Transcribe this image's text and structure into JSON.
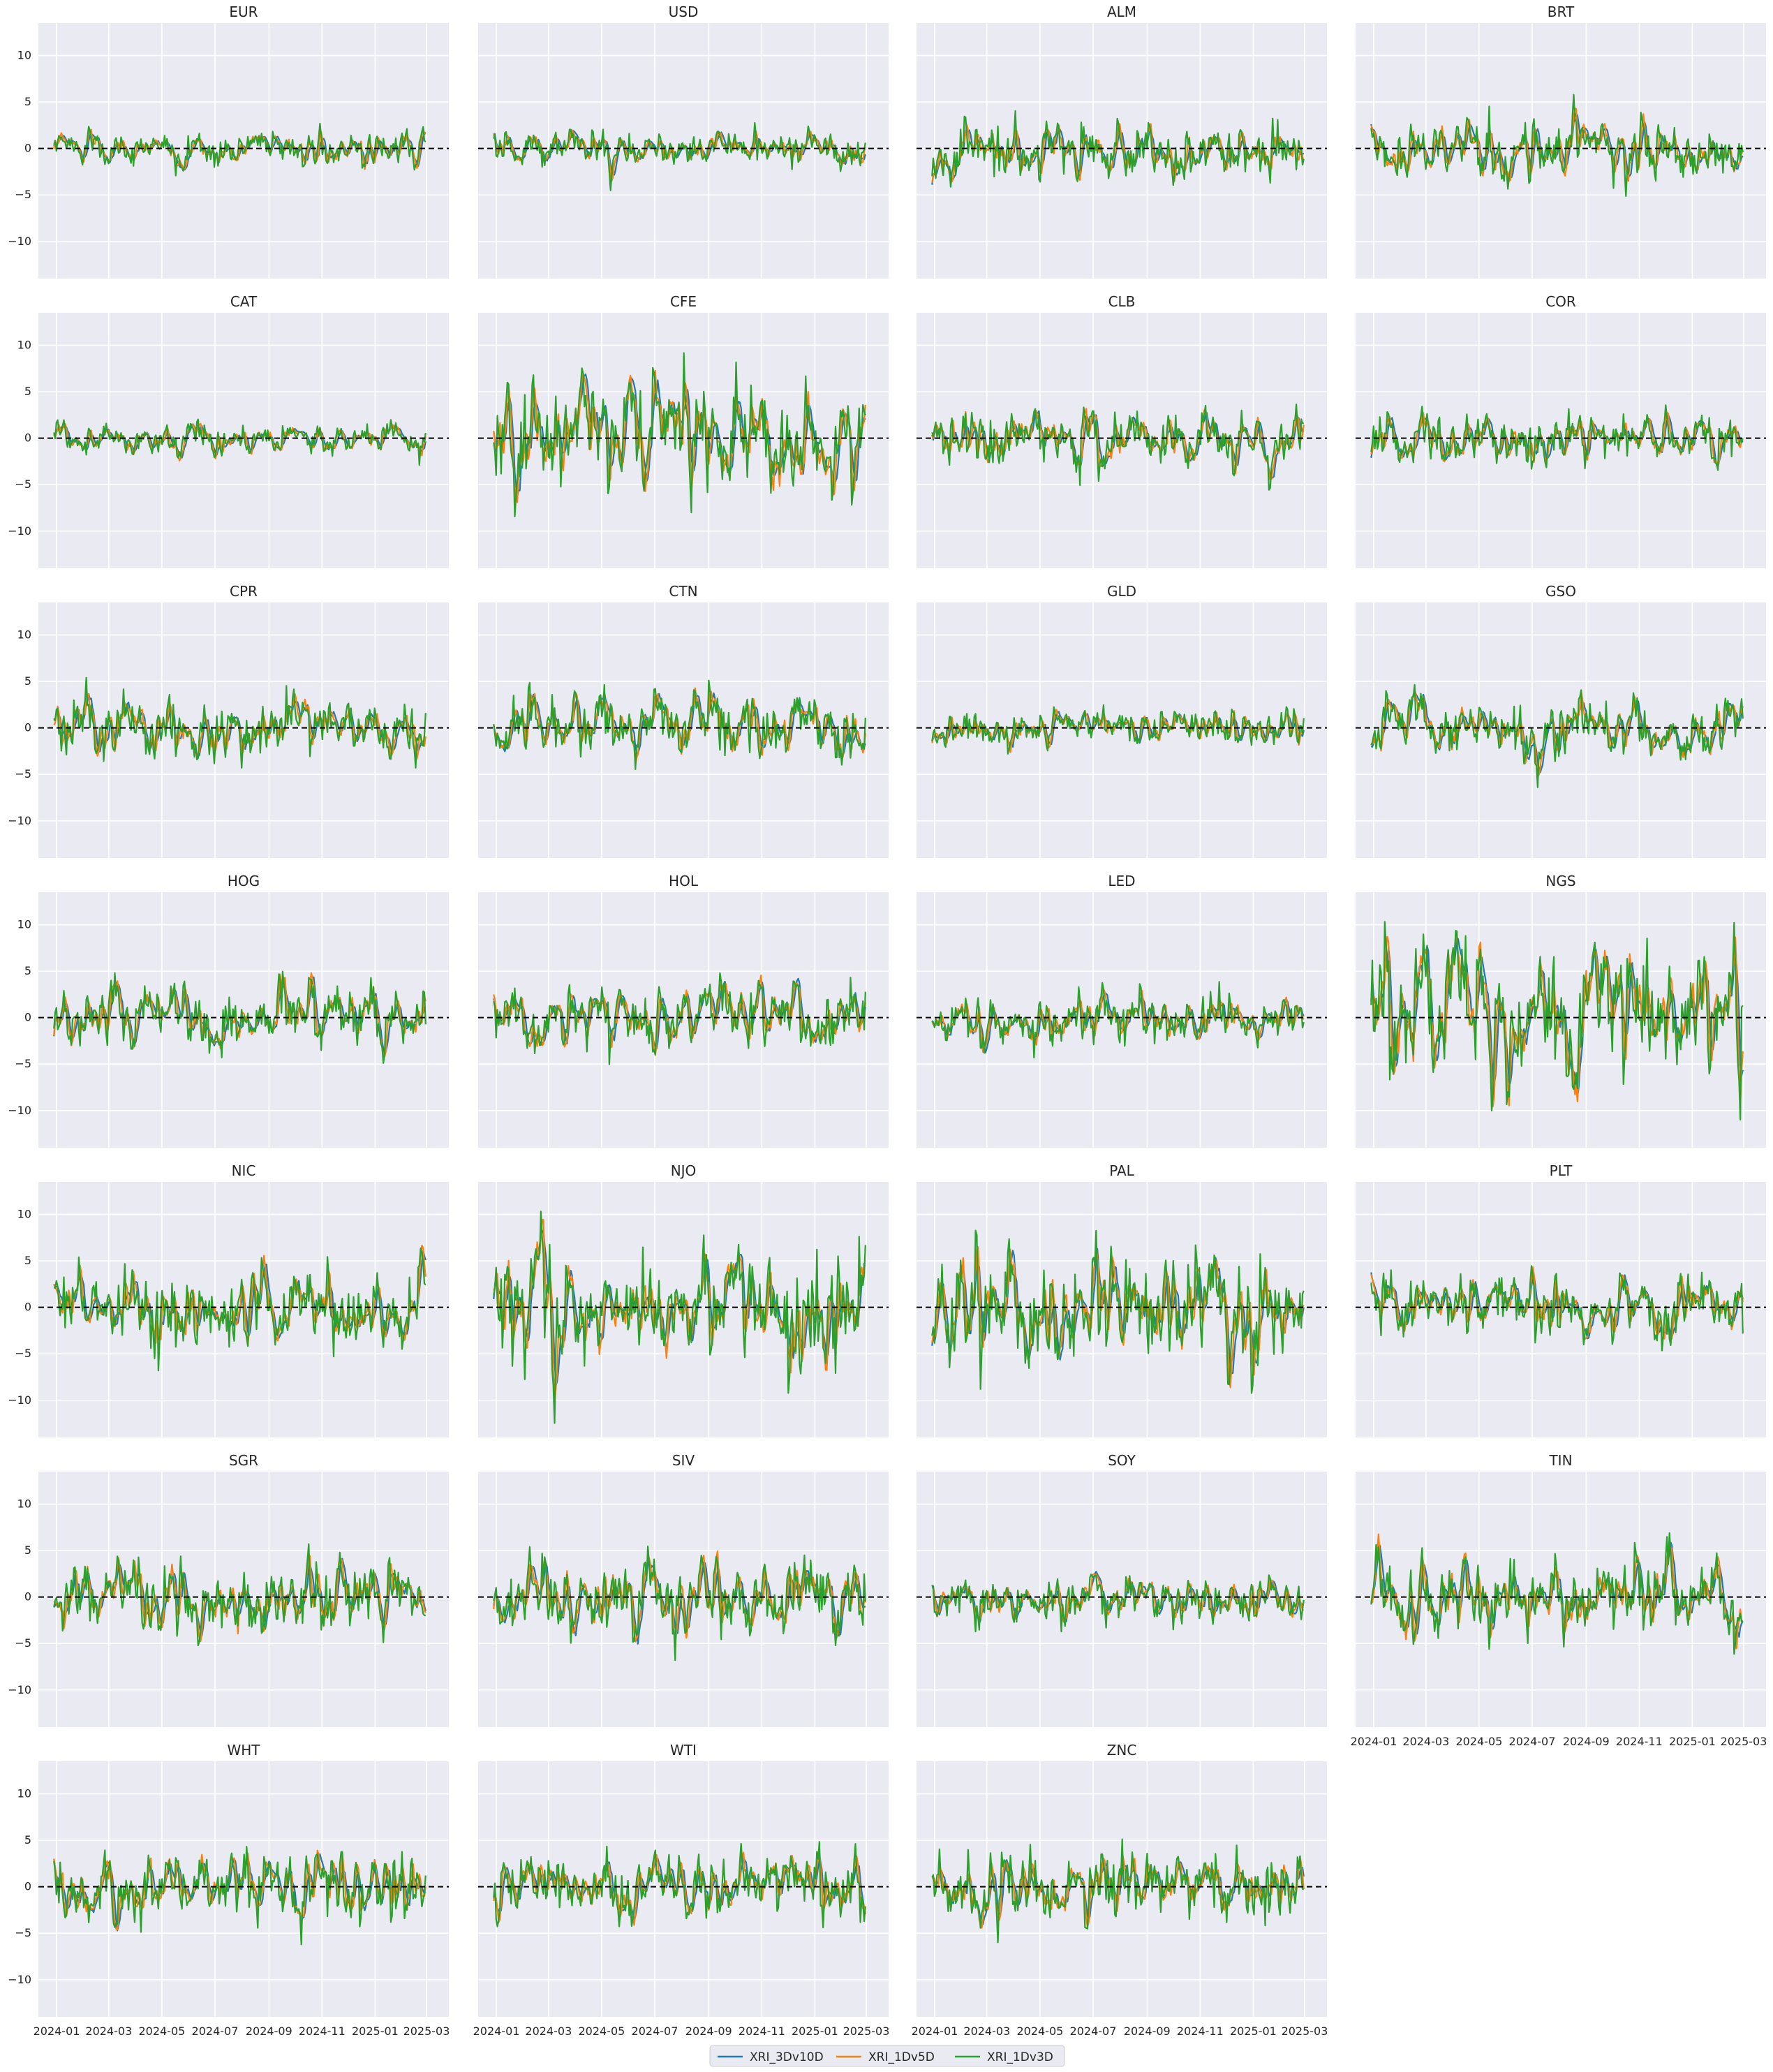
{
  "chart_data": {
    "type": "line",
    "layout": "small-multiples grid, 4 columns, shared y-axis range",
    "panels": [
      "EUR",
      "USD",
      "ALM",
      "BRT",
      "CAT",
      "CFE",
      "CLB",
      "COR",
      "CPR",
      "CTN",
      "GLD",
      "GSO",
      "HOG",
      "HOL",
      "LED",
      "NGS",
      "NIC",
      "NJO",
      "PAL",
      "PLT",
      "SGR",
      "SIV",
      "SOY",
      "TIN",
      "WHT",
      "WTI",
      "ZNC"
    ],
    "x_range": [
      "2024-01-01",
      "2025-03-01"
    ],
    "x_ticks": [
      "2024-01",
      "2024-03",
      "2024-05",
      "2024-07",
      "2024-09",
      "2024-11",
      "2025-01",
      "2025-03"
    ],
    "x_tick_dates": [
      "2024-01-01",
      "2024-03-01",
      "2024-05-01",
      "2024-07-01",
      "2024-09-01",
      "2024-11-01",
      "2025-01-01",
      "2025-03-01"
    ],
    "ylim": [
      -14,
      13.5
    ],
    "y_ticks": [
      -10,
      -5,
      0,
      5,
      10
    ],
    "reference_line": {
      "y": 0,
      "style": "dashed",
      "color": "#000000"
    },
    "grid": true,
    "background": "#eaeaf2",
    "series": [
      {
        "name": "XRI_3Dv10D",
        "color": "#1f77b4"
      },
      {
        "name": "XRI_1Dv5D",
        "color": "#ff7f0e"
      },
      {
        "name": "XRI_1Dv3D",
        "color": "#2ca02c"
      }
    ],
    "panel_amplitude": {
      "EUR": 1.0,
      "USD": 1.0,
      "ALM": 1.6,
      "BRT": 1.7,
      "CAT": 0.9,
      "CFE": 3.2,
      "CLB": 1.7,
      "COR": 1.4,
      "CPR": 1.7,
      "CTN": 1.9,
      "GLD": 1.0,
      "GSO": 1.8,
      "HOG": 1.8,
      "HOL": 1.9,
      "LED": 1.4,
      "NGS": 4.2,
      "NIC": 2.2,
      "NJO": 3.4,
      "PAL": 3.2,
      "PLT": 1.8,
      "SGR": 2.0,
      "SIV": 2.2,
      "SOY": 1.3,
      "TIN": 2.3,
      "WHT": 2.0,
      "WTI": 1.8,
      "ZNC": 1.9
    },
    "legend": {
      "position": "bottom-center"
    }
  }
}
